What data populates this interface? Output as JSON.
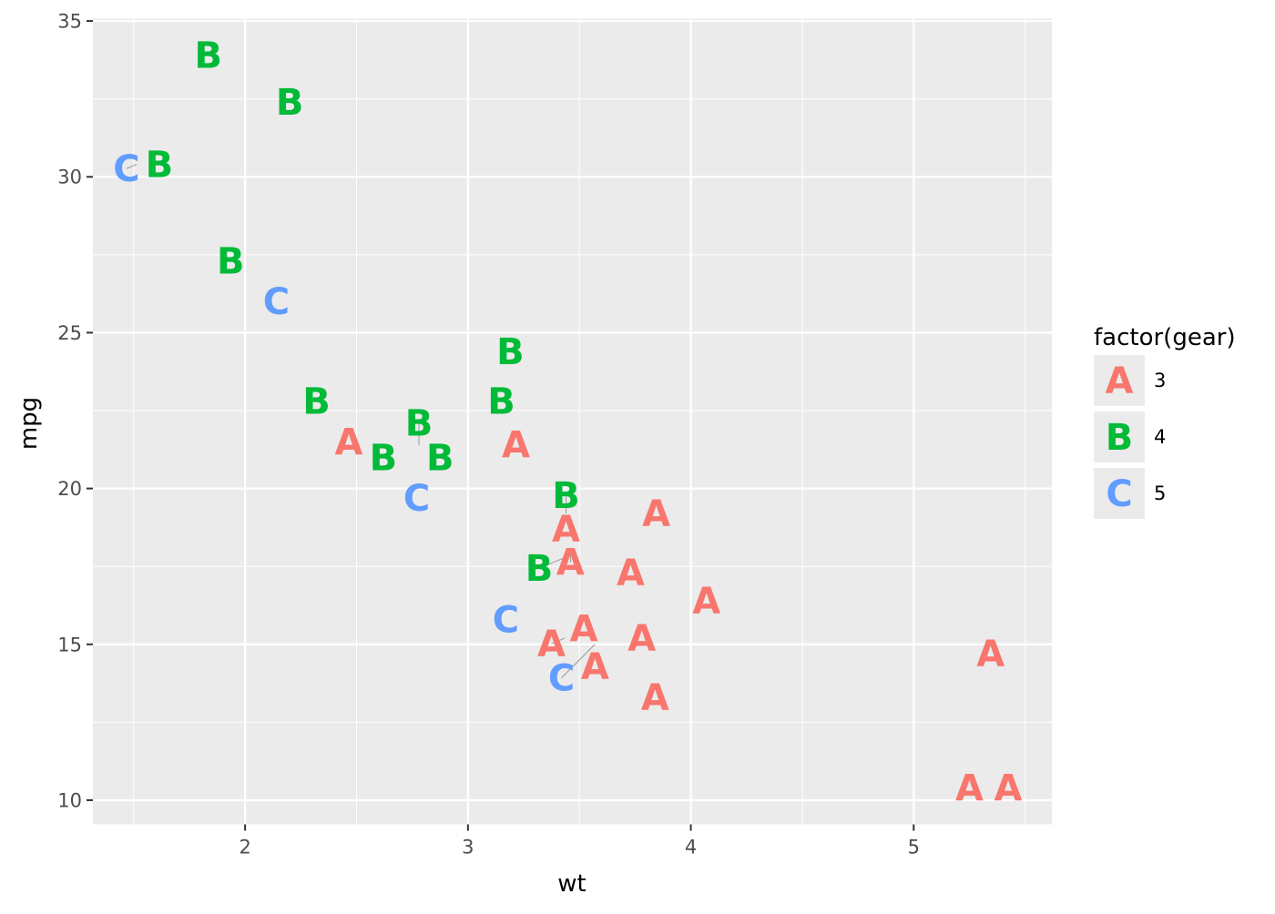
{
  "chart_data": {
    "type": "scatter",
    "mark": "text",
    "xlabel": "wt",
    "ylabel": "mpg",
    "xlim": [
      1.317,
      5.62
    ],
    "ylim": [
      9.225,
      35.075
    ],
    "xticks": [
      2,
      3,
      4,
      5
    ],
    "yticks": [
      10,
      15,
      20,
      25,
      30,
      35
    ],
    "grid": true,
    "legend": {
      "title": "factor(gear)",
      "placement": "right",
      "entries": [
        {
          "label": "3",
          "glyph": "A",
          "color": "#F8766D"
        },
        {
          "label": "4",
          "glyph": "B",
          "color": "#00BA38"
        },
        {
          "label": "5",
          "glyph": "C",
          "color": "#619CFF"
        }
      ]
    },
    "points": [
      {
        "wt": 2.62,
        "mpg": 21.0,
        "gear": "4"
      },
      {
        "wt": 2.875,
        "mpg": 21.0,
        "gear": "4"
      },
      {
        "wt": 2.32,
        "mpg": 22.8,
        "gear": "4"
      },
      {
        "wt": 3.215,
        "mpg": 21.4,
        "gear": "3"
      },
      {
        "wt": 3.44,
        "mpg": 18.7,
        "gear": "3"
      },
      {
        "wt": 3.46,
        "mpg": 18.1,
        "gear": "3"
      },
      {
        "wt": 3.57,
        "mpg": 14.3,
        "gear": "3"
      },
      {
        "wt": 3.19,
        "mpg": 24.4,
        "gear": "4"
      },
      {
        "wt": 3.15,
        "mpg": 22.8,
        "gear": "4"
      },
      {
        "wt": 3.44,
        "mpg": 19.2,
        "gear": "4"
      },
      {
        "wt": 3.44,
        "mpg": 17.8,
        "gear": "4"
      },
      {
        "wt": 4.07,
        "mpg": 16.4,
        "gear": "3"
      },
      {
        "wt": 3.73,
        "mpg": 17.3,
        "gear": "3"
      },
      {
        "wt": 3.78,
        "mpg": 15.2,
        "gear": "3"
      },
      {
        "wt": 5.25,
        "mpg": 10.4,
        "gear": "3"
      },
      {
        "wt": 5.424,
        "mpg": 10.4,
        "gear": "3"
      },
      {
        "wt": 5.345,
        "mpg": 14.7,
        "gear": "3"
      },
      {
        "wt": 2.2,
        "mpg": 32.4,
        "gear": "4"
      },
      {
        "wt": 1.615,
        "mpg": 30.4,
        "gear": "4"
      },
      {
        "wt": 1.835,
        "mpg": 33.9,
        "gear": "4"
      },
      {
        "wt": 2.465,
        "mpg": 21.5,
        "gear": "3"
      },
      {
        "wt": 3.52,
        "mpg": 15.5,
        "gear": "3"
      },
      {
        "wt": 3.435,
        "mpg": 15.2,
        "gear": "3"
      },
      {
        "wt": 3.84,
        "mpg": 13.3,
        "gear": "3"
      },
      {
        "wt": 3.845,
        "mpg": 19.2,
        "gear": "3"
      },
      {
        "wt": 1.935,
        "mpg": 27.3,
        "gear": "4"
      },
      {
        "wt": 2.14,
        "mpg": 26.0,
        "gear": "5"
      },
      {
        "wt": 1.513,
        "mpg": 30.4,
        "gear": "5"
      },
      {
        "wt": 3.17,
        "mpg": 15.8,
        "gear": "5"
      },
      {
        "wt": 2.77,
        "mpg": 19.7,
        "gear": "5"
      },
      {
        "wt": 3.57,
        "mpg": 15.0,
        "gear": "5"
      },
      {
        "wt": 2.78,
        "mpg": 21.4,
        "gear": "4"
      }
    ]
  }
}
